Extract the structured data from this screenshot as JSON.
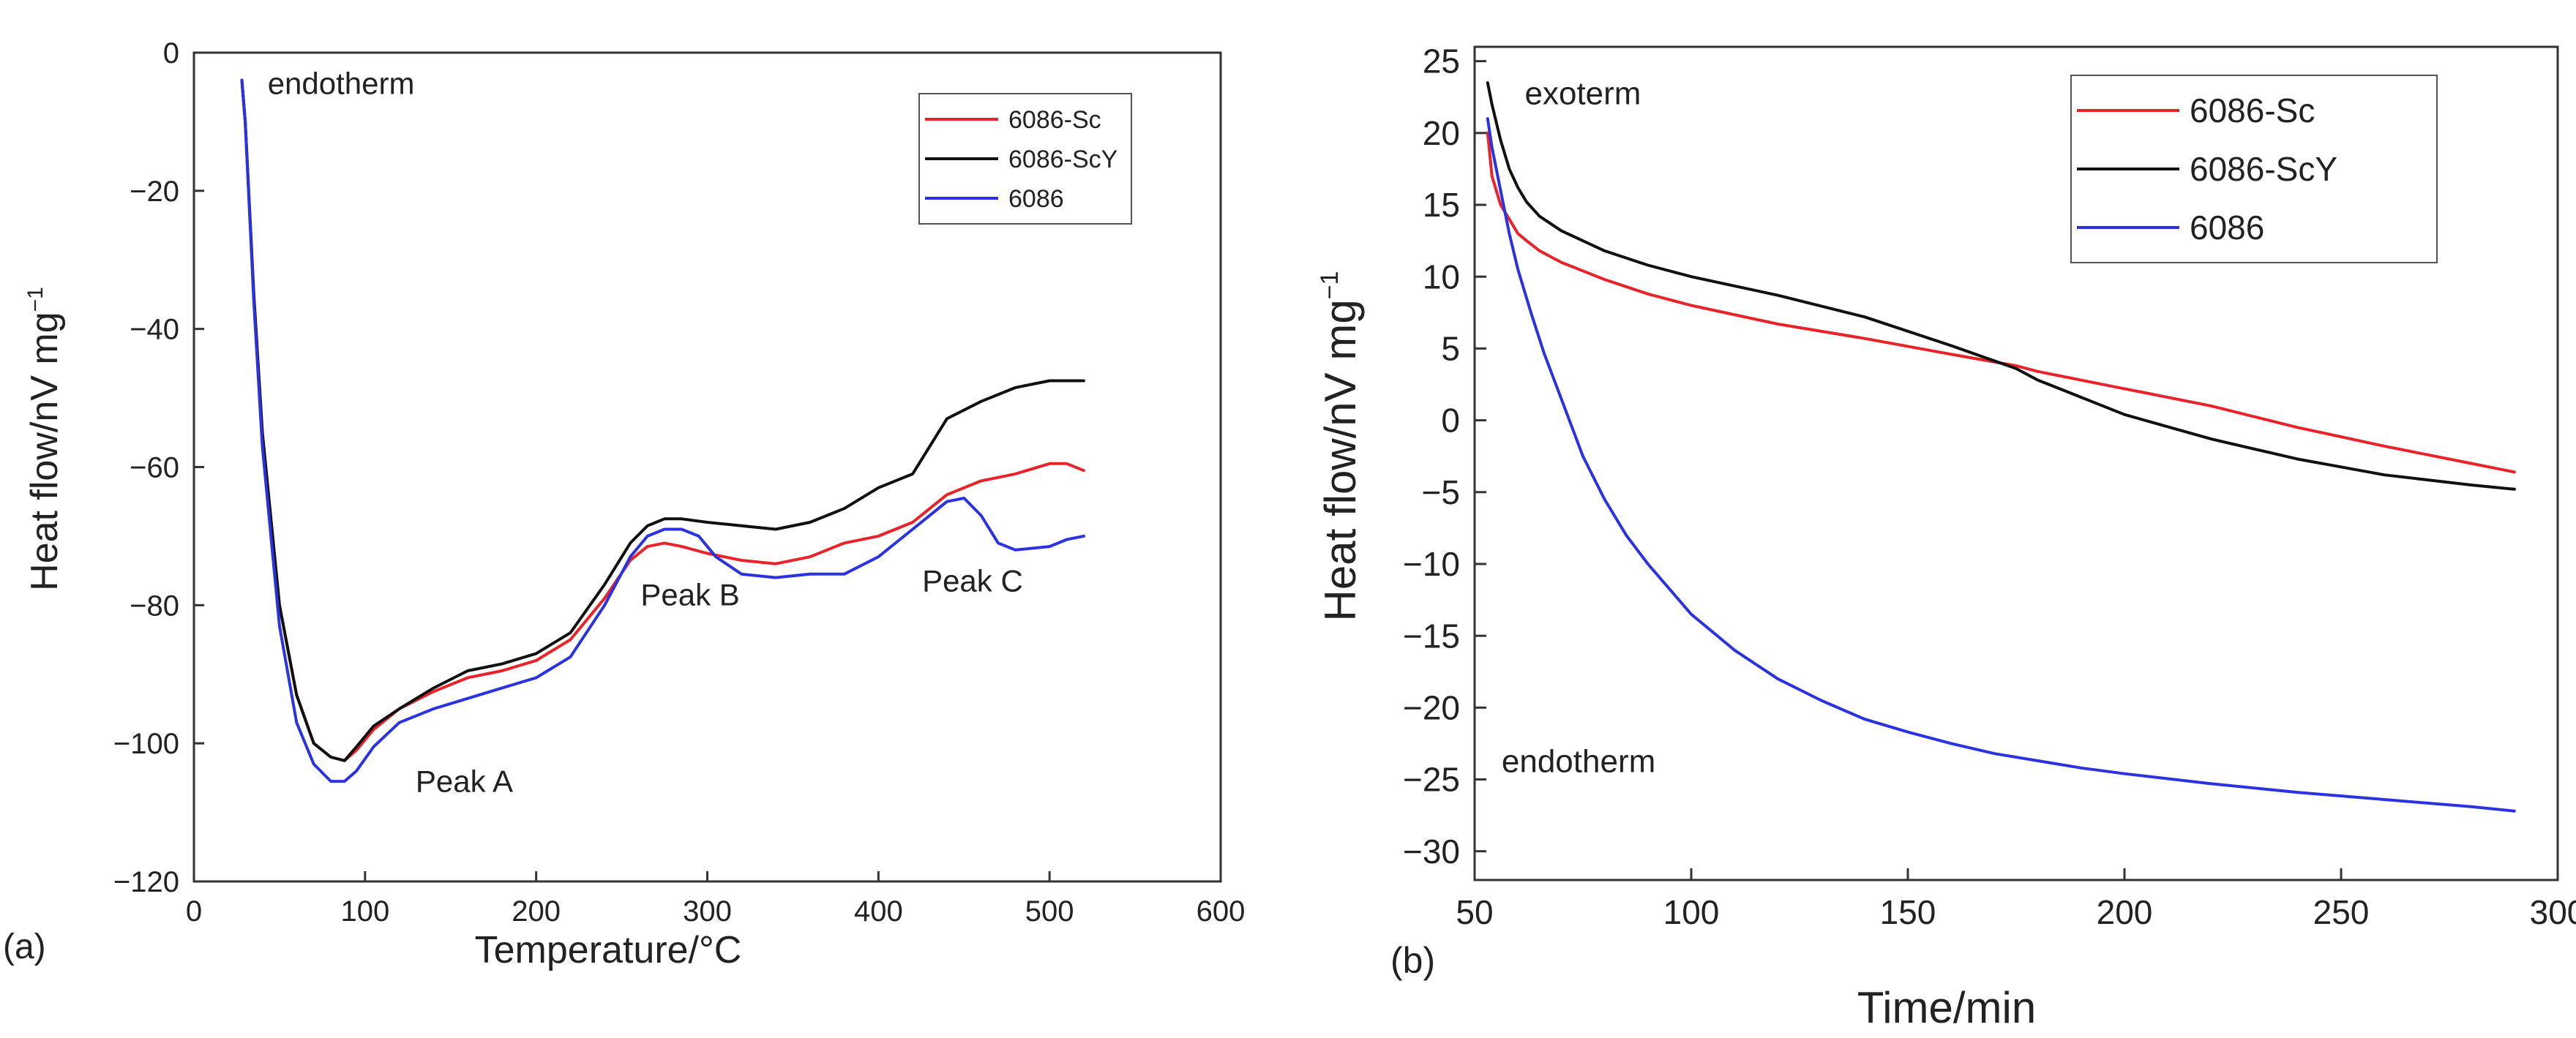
{
  "chart_data": [
    {
      "type": "line",
      "panel_label": "(a)",
      "xlabel": "Temperature/°C",
      "ylabel_main": "Heat flow/nV mg",
      "ylabel_sup": "−1",
      "xlim": [
        0,
        600
      ],
      "ylim": [
        -120,
        0
      ],
      "xticks": [
        0,
        100,
        200,
        300,
        400,
        500,
        600
      ],
      "yticks": [
        0,
        -20,
        -40,
        -60,
        -80,
        -100,
        -120
      ],
      "xtick_labels": [
        "0",
        "100",
        "200",
        "300",
        "400",
        "500",
        "600"
      ],
      "ytick_labels": [
        "0",
        "−20",
        "−40",
        "−60",
        "−80",
        "−100",
        "−120"
      ],
      "grid": false,
      "legend_position": "top-right",
      "annotations": [
        {
          "text": "endotherm",
          "x": 86,
          "y": -6
        },
        {
          "text": "Peak A",
          "x": 158,
          "y": -107
        },
        {
          "text": "Peak B",
          "x": 290,
          "y": -80
        },
        {
          "text": "Peak C",
          "x": 455,
          "y": -78
        }
      ],
      "series": [
        {
          "name": "6086-Sc",
          "color": "#e8242a",
          "x": [
            28,
            30,
            35,
            40,
            50,
            60,
            70,
            80,
            88,
            95,
            105,
            120,
            140,
            160,
            180,
            200,
            220,
            240,
            255,
            265,
            275,
            285,
            300,
            320,
            340,
            360,
            380,
            400,
            420,
            440,
            460,
            480,
            500,
            510,
            520
          ],
          "y": [
            -4,
            -10,
            -35,
            -55,
            -80,
            -93,
            -100,
            -102,
            -102.5,
            -101,
            -98,
            -95,
            -92.5,
            -90.5,
            -89.5,
            -88,
            -85,
            -79,
            -73.5,
            -71.5,
            -71,
            -71.5,
            -72.5,
            -73.5,
            -74,
            -73,
            -71,
            -70,
            -68,
            -64,
            -62,
            -61,
            -59.5,
            -59.5,
            -60.5
          ]
        },
        {
          "name": "6086-ScY",
          "color": "#111111",
          "x": [
            28,
            30,
            35,
            40,
            50,
            60,
            70,
            80,
            88,
            95,
            105,
            120,
            140,
            160,
            180,
            200,
            220,
            240,
            255,
            265,
            275,
            285,
            300,
            320,
            340,
            360,
            380,
            400,
            420,
            440,
            460,
            480,
            500,
            510,
            520
          ],
          "y": [
            -4,
            -10,
            -35,
            -55,
            -80,
            -93,
            -100,
            -102,
            -102.5,
            -100.5,
            -97.5,
            -95,
            -92,
            -89.5,
            -88.5,
            -87,
            -84,
            -77,
            -71,
            -68.5,
            -67.5,
            -67.5,
            -68,
            -68.5,
            -69,
            -68,
            -66,
            -63,
            -61,
            -53,
            -50.5,
            -48.5,
            -47.5,
            -47.5,
            -47.5
          ]
        },
        {
          "name": "6086",
          "color": "#2b32e0",
          "x": [
            28,
            30,
            35,
            40,
            50,
            60,
            70,
            80,
            88,
            95,
            105,
            120,
            140,
            160,
            180,
            200,
            220,
            240,
            255,
            265,
            275,
            285,
            295,
            305,
            320,
            340,
            360,
            380,
            400,
            420,
            440,
            450,
            460,
            470,
            480,
            500,
            510,
            520
          ],
          "y": [
            -4,
            -10,
            -36,
            -57,
            -83,
            -97,
            -103,
            -105.5,
            -105.5,
            -104,
            -100.5,
            -97,
            -95,
            -93.5,
            -92,
            -90.5,
            -87.5,
            -80,
            -73,
            -70,
            -69,
            -69,
            -70,
            -73,
            -75.5,
            -76,
            -75.5,
            -75.5,
            -73,
            -69,
            -65,
            -64.5,
            -67,
            -71,
            -72,
            -71.5,
            -70.5,
            -70
          ]
        }
      ]
    },
    {
      "type": "line",
      "panel_label": "(b)",
      "xlabel": "Time/min",
      "ylabel_main": "Heat flow/nV mg",
      "ylabel_sup": "−1",
      "xlim": [
        50,
        300
      ],
      "ylim": [
        -32,
        26
      ],
      "xticks": [
        50,
        100,
        150,
        200,
        250,
        300
      ],
      "yticks": [
        25,
        20,
        15,
        10,
        5,
        0,
        -5,
        -10,
        -15,
        -20,
        -25,
        -30
      ],
      "xtick_labels": [
        "50",
        "100",
        "150",
        "200",
        "250",
        "300"
      ],
      "ytick_labels": [
        "25",
        "20",
        "15",
        "10",
        "5",
        "0",
        "−5",
        "−10",
        "−15",
        "−20",
        "−25",
        "−30"
      ],
      "grid": false,
      "legend_position": "top-right",
      "annotations": [
        {
          "text": "exoterm",
          "x": 75,
          "y": 22
        },
        {
          "text": "endotherm",
          "x": 74,
          "y": -24.5
        }
      ],
      "series": [
        {
          "name": "6086-Sc",
          "color": "#e8242a",
          "x": [
            53,
            54,
            56,
            58,
            60,
            62,
            65,
            70,
            80,
            90,
            100,
            120,
            140,
            160,
            175,
            180,
            200,
            220,
            240,
            260,
            280,
            290
          ],
          "y": [
            20,
            17,
            15,
            14,
            13,
            12.5,
            11.8,
            11,
            9.8,
            8.8,
            8,
            6.7,
            5.7,
            4.6,
            3.8,
            3.4,
            2.2,
            1,
            -0.5,
            -1.8,
            -3,
            -3.6
          ]
        },
        {
          "name": "6086-ScY",
          "color": "#111111",
          "x": [
            53,
            54,
            56,
            58,
            60,
            62,
            65,
            70,
            80,
            90,
            100,
            120,
            140,
            160,
            175,
            180,
            200,
            220,
            240,
            260,
            280,
            290
          ],
          "y": [
            23.5,
            22,
            19.5,
            17.5,
            16.2,
            15.2,
            14.2,
            13.2,
            11.8,
            10.8,
            10,
            8.7,
            7.2,
            5.2,
            3.6,
            2.8,
            0.4,
            -1.3,
            -2.7,
            -3.8,
            -4.5,
            -4.8
          ]
        },
        {
          "name": "6086",
          "color": "#2b32e0",
          "x": [
            53,
            54,
            56,
            58,
            60,
            63,
            66,
            70,
            75,
            80,
            85,
            90,
            100,
            110,
            120,
            130,
            140,
            150,
            160,
            170,
            180,
            190,
            200,
            220,
            240,
            260,
            280,
            290
          ],
          "y": [
            21,
            19,
            16,
            13,
            10.5,
            7.5,
            4.7,
            1.5,
            -2.5,
            -5.5,
            -8,
            -10,
            -13.5,
            -16,
            -18,
            -19.5,
            -20.8,
            -21.7,
            -22.5,
            -23.2,
            -23.7,
            -24.2,
            -24.6,
            -25.3,
            -25.9,
            -26.4,
            -26.9,
            -27.2
          ]
        }
      ]
    }
  ]
}
